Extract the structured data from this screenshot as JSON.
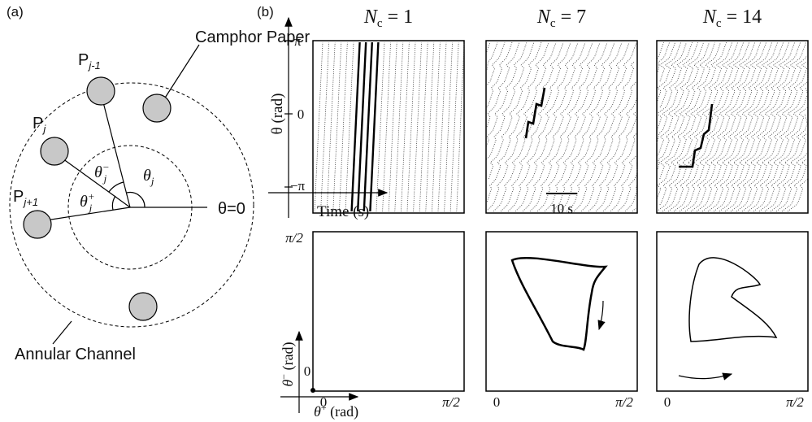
{
  "panel_a": {
    "label": "(a)",
    "camphor_label": "Camphor Paper",
    "channel_label": "Annular Channel",
    "particles": [
      {
        "base": "P",
        "sub": "j-1"
      },
      {
        "base": "P",
        "sub": "j"
      },
      {
        "base": "P",
        "sub": "j+1"
      }
    ],
    "angles": [
      {
        "base": "θ",
        "sub": "j",
        "sup": "−"
      },
      {
        "base": "θ",
        "sub": "j",
        "sup": "+"
      },
      {
        "base": "θ",
        "sub": "j"
      }
    ],
    "zero_ray": "θ=0"
  },
  "panel_b": {
    "label": "(b)",
    "columns": [
      {
        "base": "N",
        "sub": "c",
        "rest": " = 1"
      },
      {
        "base": "N",
        "sub": "c",
        "rest": " = 7"
      },
      {
        "base": "N",
        "sub": "c",
        "rest": " = 14"
      }
    ],
    "top": {
      "y_ticks": [
        "π",
        "0",
        "−π"
      ],
      "y_label": "θ (rad)",
      "x_label": "Time (s)",
      "scale_bar": "10 s"
    },
    "bottom": {
      "y_ticks": [
        "π/2",
        "0"
      ],
      "x_ticks": [
        "0",
        "π/2"
      ],
      "y_label": {
        "base": "θ",
        "sup": "−",
        "rest": " (rad)"
      },
      "x_label": {
        "base": "θ",
        "sup": "+",
        "rest": " (rad)"
      }
    }
  }
}
